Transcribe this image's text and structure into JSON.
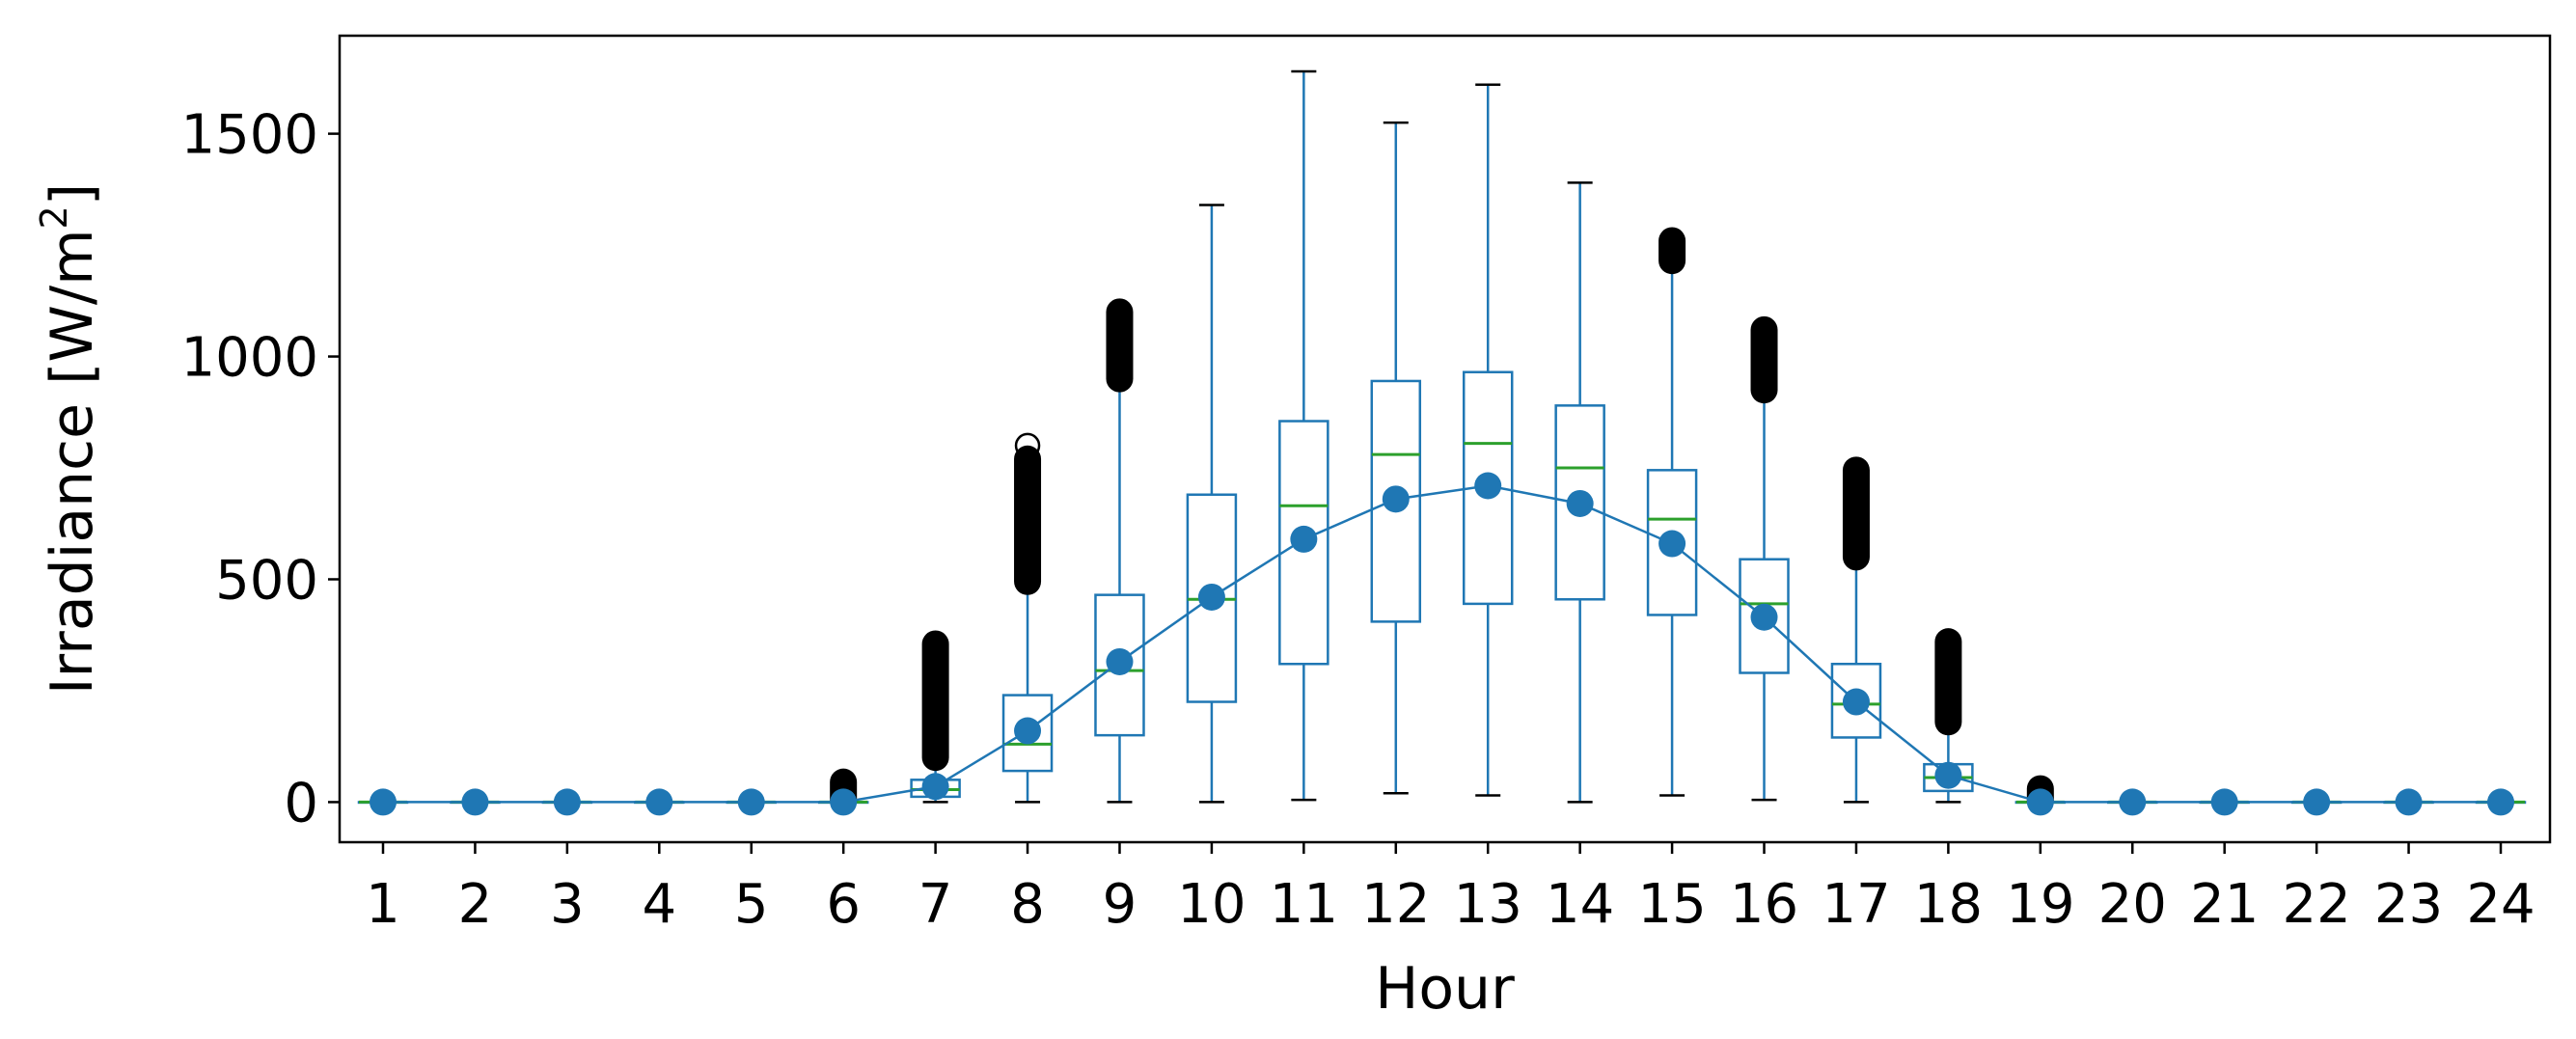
{
  "chart_data": {
    "type": "box",
    "xlabel": "Hour",
    "ylabel_main": "Irradiance [W/m",
    "ylabel_sup": "2",
    "ylabel_end": "]",
    "ylim": [
      -90,
      1720
    ],
    "yticks": [
      0,
      500,
      1000,
      1500
    ],
    "ytick_labels": [
      "0",
      "500",
      "1000",
      "1500"
    ],
    "categories": [
      "1",
      "2",
      "3",
      "4",
      "5",
      "6",
      "7",
      "8",
      "9",
      "10",
      "11",
      "12",
      "13",
      "14",
      "15",
      "16",
      "17",
      "18",
      "19",
      "20",
      "21",
      "22",
      "23",
      "24"
    ],
    "box_color": "#1f77b4",
    "median_color": "#2ca02c",
    "mean_color": "#1f77b4",
    "flier_color": "#000000",
    "boxes": [
      {
        "hour": 1,
        "whislo": 0,
        "q1": 0,
        "med": 0,
        "q3": 0,
        "whishi": 0,
        "mean": 0,
        "fliers": []
      },
      {
        "hour": 2,
        "whislo": 0,
        "q1": 0,
        "med": 0,
        "q3": 0,
        "whishi": 0,
        "mean": 0,
        "fliers": []
      },
      {
        "hour": 3,
        "whislo": 0,
        "q1": 0,
        "med": 0,
        "q3": 0,
        "whishi": 0,
        "mean": 0,
        "fliers": []
      },
      {
        "hour": 4,
        "whislo": 0,
        "q1": 0,
        "med": 0,
        "q3": 0,
        "whishi": 0,
        "mean": 0,
        "fliers": []
      },
      {
        "hour": 5,
        "whislo": 0,
        "q1": 0,
        "med": 0,
        "q3": 0,
        "whishi": 0,
        "mean": 0,
        "fliers": []
      },
      {
        "hour": 6,
        "whislo": 0,
        "q1": 0,
        "med": 0,
        "q3": 0,
        "whishi": 0,
        "mean": 0,
        "fliers": [
          {
            "from": 3,
            "to": 45
          }
        ]
      },
      {
        "hour": 7,
        "whislo": 0,
        "q1": 12,
        "med": 28,
        "q3": 50,
        "whishi": 100,
        "mean": 35,
        "fliers": [
          {
            "from": 100,
            "to": 355
          }
        ]
      },
      {
        "hour": 8,
        "whislo": 0,
        "q1": 70,
        "med": 130,
        "q3": 240,
        "whishi": 490,
        "mean": 160,
        "fliers": [
          {
            "from": 495,
            "to": 770
          },
          {
            "point": 800
          }
        ]
      },
      {
        "hour": 9,
        "whislo": 0,
        "q1": 150,
        "med": 295,
        "q3": 465,
        "whishi": 945,
        "mean": 315,
        "fliers": [
          {
            "from": 950,
            "to": 1100
          }
        ]
      },
      {
        "hour": 10,
        "whislo": 0,
        "q1": 225,
        "med": 455,
        "q3": 690,
        "whishi": 1340,
        "mean": 460,
        "fliers": []
      },
      {
        "hour": 11,
        "whislo": 5,
        "q1": 310,
        "med": 665,
        "q3": 855,
        "whishi": 1640,
        "mean": 590,
        "fliers": []
      },
      {
        "hour": 12,
        "whislo": 20,
        "q1": 405,
        "med": 780,
        "q3": 945,
        "whishi": 1525,
        "mean": 680,
        "fliers": []
      },
      {
        "hour": 13,
        "whislo": 15,
        "q1": 445,
        "med": 805,
        "q3": 965,
        "whishi": 1610,
        "mean": 710,
        "fliers": []
      },
      {
        "hour": 14,
        "whislo": 0,
        "q1": 455,
        "med": 750,
        "q3": 890,
        "whishi": 1390,
        "mean": 670,
        "fliers": []
      },
      {
        "hour": 15,
        "whislo": 15,
        "q1": 420,
        "med": 635,
        "q3": 745,
        "whishi": 1210,
        "mean": 580,
        "fliers": [
          {
            "from": 1215,
            "to": 1260
          }
        ]
      },
      {
        "hour": 16,
        "whislo": 5,
        "q1": 290,
        "med": 445,
        "q3": 545,
        "whishi": 920,
        "mean": 415,
        "fliers": [
          {
            "from": 925,
            "to": 1060
          }
        ]
      },
      {
        "hour": 17,
        "whislo": 0,
        "q1": 145,
        "med": 220,
        "q3": 310,
        "whishi": 545,
        "mean": 225,
        "fliers": [
          {
            "from": 550,
            "to": 745
          }
        ]
      },
      {
        "hour": 18,
        "whislo": 0,
        "q1": 25,
        "med": 55,
        "q3": 85,
        "whishi": 175,
        "mean": 60,
        "fliers": [
          {
            "from": 180,
            "to": 360
          }
        ]
      },
      {
        "hour": 19,
        "whislo": 0,
        "q1": 0,
        "med": 0,
        "q3": 0,
        "whishi": 0,
        "mean": 0,
        "fliers": [
          {
            "from": 3,
            "to": 30
          }
        ]
      },
      {
        "hour": 20,
        "whislo": 0,
        "q1": 0,
        "med": 0,
        "q3": 0,
        "whishi": 0,
        "mean": 0,
        "fliers": []
      },
      {
        "hour": 21,
        "whislo": 0,
        "q1": 0,
        "med": 0,
        "q3": 0,
        "whishi": 0,
        "mean": 0,
        "fliers": []
      },
      {
        "hour": 22,
        "whislo": 0,
        "q1": 0,
        "med": 0,
        "q3": 0,
        "whishi": 0,
        "mean": 0,
        "fliers": []
      },
      {
        "hour": 23,
        "whislo": 0,
        "q1": 0,
        "med": 0,
        "q3": 0,
        "whishi": 0,
        "mean": 0,
        "fliers": []
      },
      {
        "hour": 24,
        "whislo": 0,
        "q1": 0,
        "med": 0,
        "q3": 0,
        "whishi": 0,
        "mean": 0,
        "fliers": []
      }
    ]
  }
}
